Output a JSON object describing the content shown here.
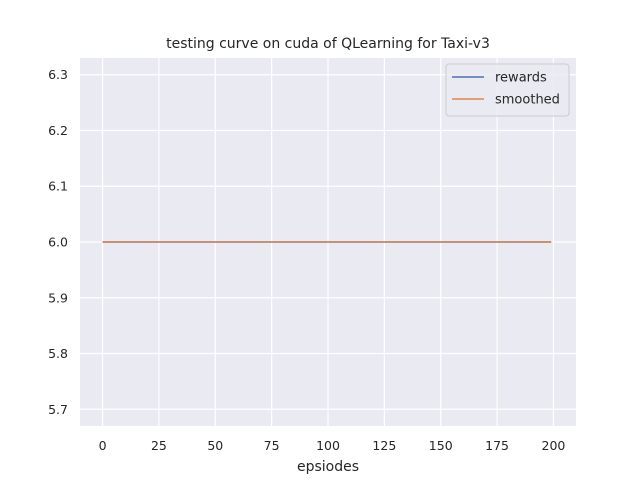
{
  "chart_data": {
    "type": "line",
    "title": "testing curve on cuda of QLearning for Taxi-v3",
    "xlabel": "epsiodes",
    "ylabel": "",
    "xlim": [
      -10,
      210
    ],
    "ylim": [
      5.67,
      6.33
    ],
    "xticks": [
      0,
      25,
      50,
      75,
      100,
      125,
      150,
      175,
      200
    ],
    "xtick_labels": [
      "0",
      "25",
      "50",
      "75",
      "100",
      "125",
      "150",
      "175",
      "200"
    ],
    "yticks": [
      5.7,
      5.8,
      5.9,
      6.0,
      6.1,
      6.2,
      6.3
    ],
    "ytick_labels": [
      "5.7",
      "5.8",
      "5.9",
      "6.0",
      "6.1",
      "6.2",
      "6.3"
    ],
    "grid": true,
    "legend_position": "top-right",
    "series": [
      {
        "name": "rewards",
        "color": "#4c72b0",
        "x": [
          0,
          199
        ],
        "y": [
          6.0,
          6.0
        ]
      },
      {
        "name": "smoothed",
        "color": "#dd8452",
        "x": [
          0,
          199
        ],
        "y": [
          6.0,
          6.0
        ]
      }
    ]
  }
}
